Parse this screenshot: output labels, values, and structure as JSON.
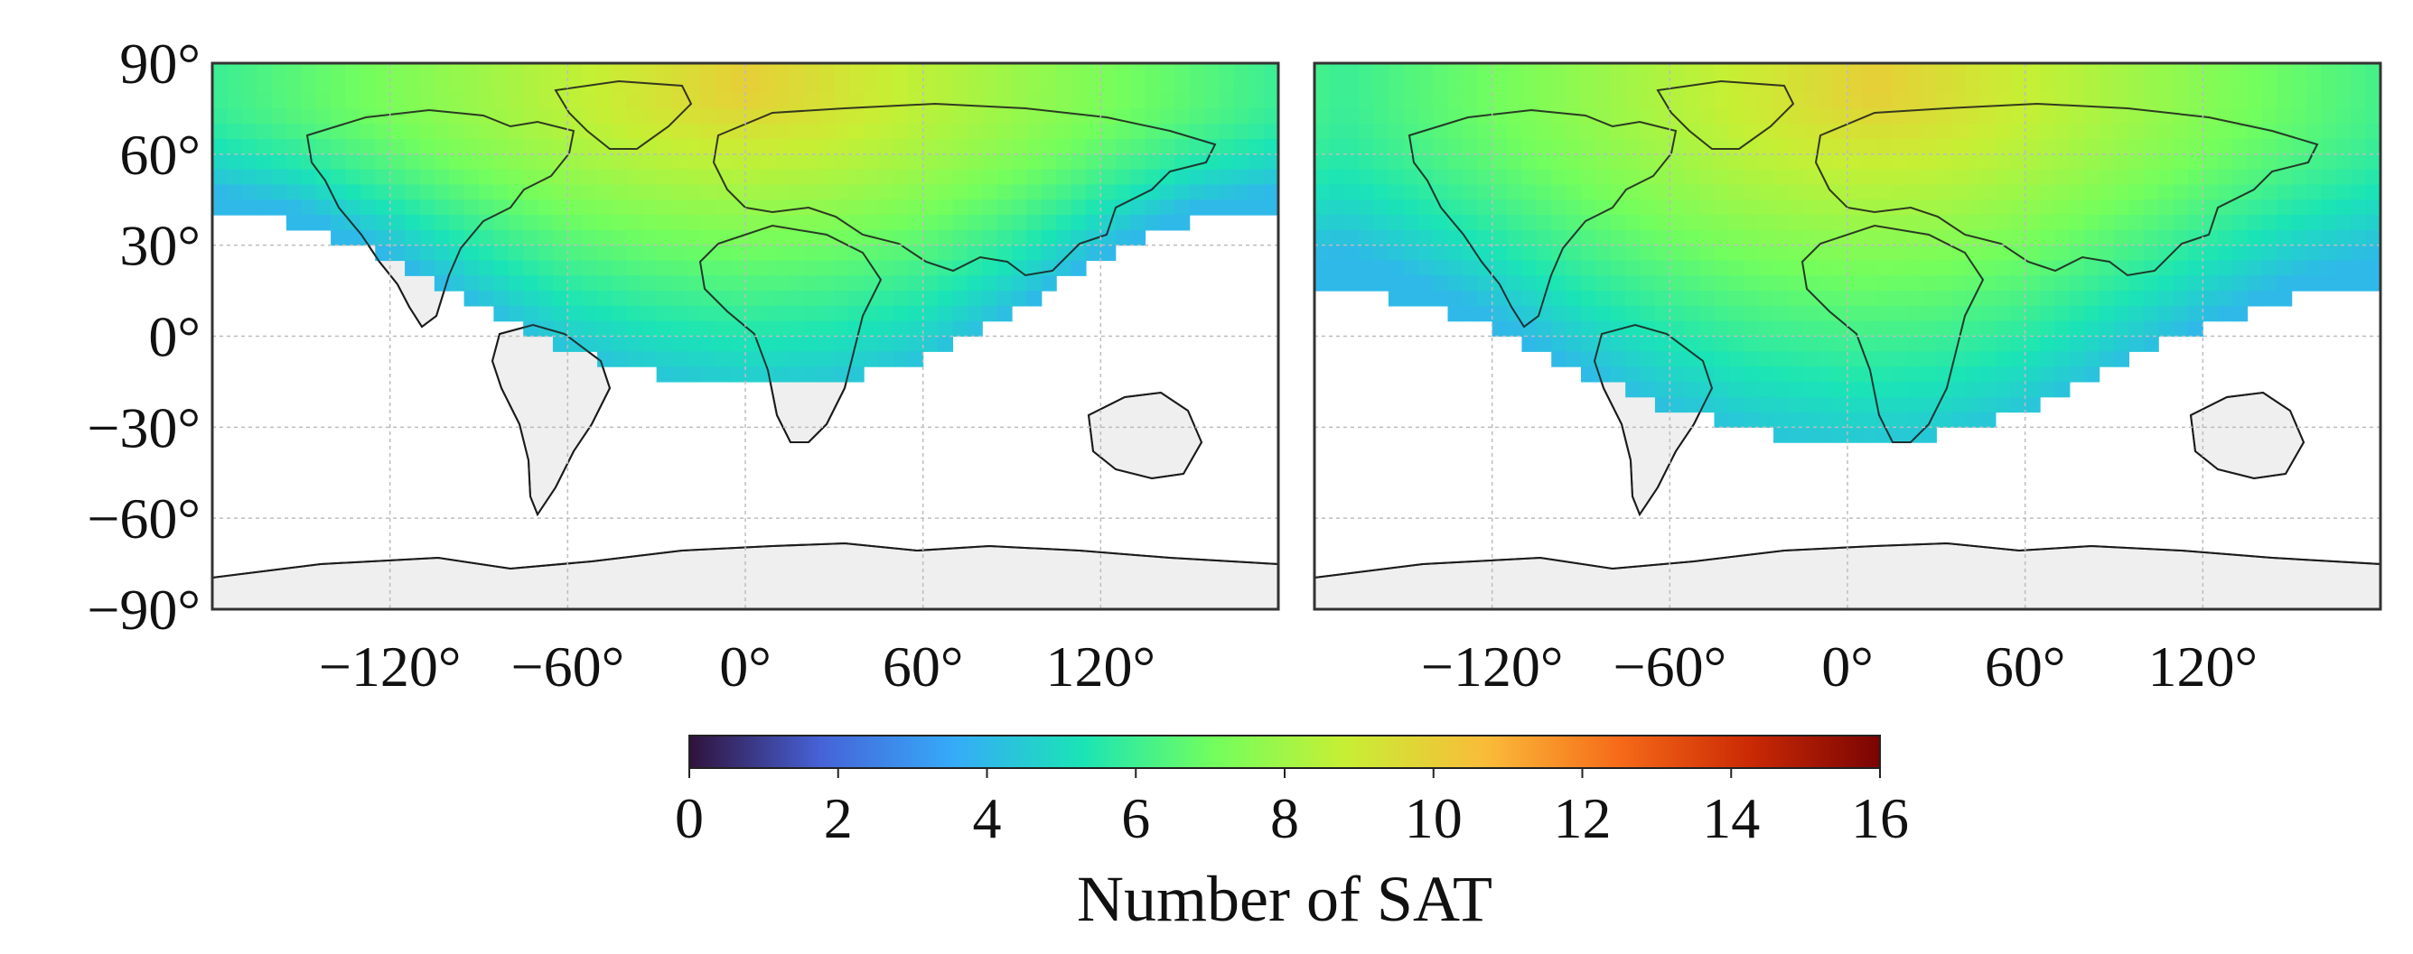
{
  "chart_data": {
    "type": "heatmap",
    "panels": [
      {
        "name": "left",
        "coverage_southern_edge_lat_by_lon": [
          [
            -180,
            40
          ],
          [
            -150,
            37
          ],
          [
            -120,
            25
          ],
          [
            -90,
            10
          ],
          [
            -60,
            -5
          ],
          [
            -30,
            -13
          ],
          [
            0,
            -17
          ],
          [
            30,
            -15
          ],
          [
            60,
            -8
          ],
          [
            90,
            8
          ],
          [
            120,
            26
          ],
          [
            150,
            38
          ],
          [
            180,
            40
          ]
        ],
        "hotspot": {
          "lon": 0,
          "lat": 80,
          "value": 10
        },
        "edge_value": 4
      },
      {
        "name": "right",
        "coverage_southern_edge_lat_by_lon": [
          [
            -180,
            16
          ],
          [
            -150,
            12
          ],
          [
            -120,
            2
          ],
          [
            -90,
            -12
          ],
          [
            -60,
            -24
          ],
          [
            -30,
            -32
          ],
          [
            0,
            -35
          ],
          [
            30,
            -33
          ],
          [
            60,
            -25
          ],
          [
            90,
            -10
          ],
          [
            120,
            3
          ],
          [
            150,
            13
          ],
          [
            180,
            16
          ]
        ],
        "hotspot": {
          "lon": 10,
          "lat": 80,
          "value": 10
        },
        "edge_value": 4
      }
    ],
    "xlim": [
      -180,
      180
    ],
    "ylim": [
      -90,
      90
    ],
    "xticks": [
      "−120°",
      "−60°",
      "0°",
      "60°",
      "120°"
    ],
    "xtick_values": [
      -120,
      -60,
      0,
      60,
      120
    ],
    "yticks": [
      "90°",
      "60°",
      "30°",
      "0°",
      "−30°",
      "−60°",
      "−90°"
    ],
    "ytick_values": [
      90,
      60,
      30,
      0,
      -30,
      -60,
      -90
    ],
    "grid": true,
    "colorbar": {
      "min": 0,
      "max": 16,
      "ticks": [
        "0",
        "2",
        "4",
        "6",
        "8",
        "10",
        "12",
        "14",
        "16"
      ],
      "label": "Number of SAT",
      "colormap": [
        "#30123b",
        "#4662d7",
        "#36aaf9",
        "#1ae4b6",
        "#72fe5e",
        "#c7ef34",
        "#fabb39",
        "#f66b19",
        "#cb2a04",
        "#7a0403"
      ]
    }
  }
}
